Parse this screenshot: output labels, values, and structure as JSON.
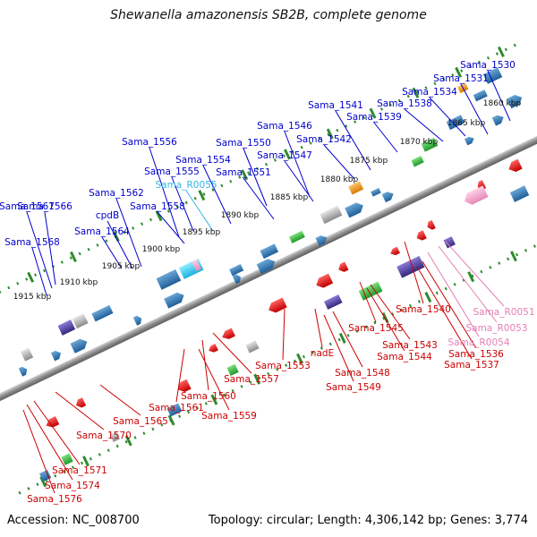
{
  "title": "Shewanella amazonensis SB2B, complete genome",
  "footer": {
    "accession": "Accession: NC_008700",
    "summary": "Topology: circular; Length: 4,306,142 bp; Genes: 3,774"
  },
  "ruler_ticks": [
    "1860 kbp",
    "1865 kbp",
    "1870 kbp",
    "1875 kbp",
    "1880 kbp",
    "1885 kbp",
    "1890 kbp",
    "1895 kbp",
    "1900 kbp",
    "1905 kbp",
    "1910 kbp",
    "1915 kbp"
  ],
  "labels_top": [
    "Sama_1530",
    "Sama_1531",
    "Sama_1534",
    "Sama_1538",
    "Sama_1539",
    "Sama_1541",
    "Sama_1542",
    "Sama_1546",
    "Sama_1547",
    "Sama_1550",
    "Sama_1551",
    "Sama_1554",
    "Sama_1555",
    "Sama_R0055",
    "Sama_1556",
    "Sama_1558",
    "Sama_1562",
    "cpdB",
    "Sama_1564",
    "Sama_1566",
    "Sama_1567",
    "Sama_1568"
  ],
  "labels_bottom": [
    "Sama_1540",
    "Sama_R0051",
    "Sama_R0053",
    "Sama_R0054",
    "Sama_1536",
    "Sama_1537",
    "Sama_1545",
    "Sama_1543",
    "Sama_1544",
    "nadE",
    "Sama_1548",
    "Sama_1549",
    "Sama_1553",
    "Sama_1557",
    "Sama_1560",
    "Sama_1561",
    "Sama_1559",
    "Sama_1565",
    "Sama_1570",
    "Sama_1571",
    "Sama_1574",
    "Sama_1576"
  ],
  "colors": {
    "forward_label": "#0000cc",
    "reverse_label": "#cc0000",
    "rna_label_top": "#33b5e5",
    "rna_label_bottom": "#e57fb5",
    "backbone": "#888888",
    "ruler_tick": "#2e8b2e"
  }
}
